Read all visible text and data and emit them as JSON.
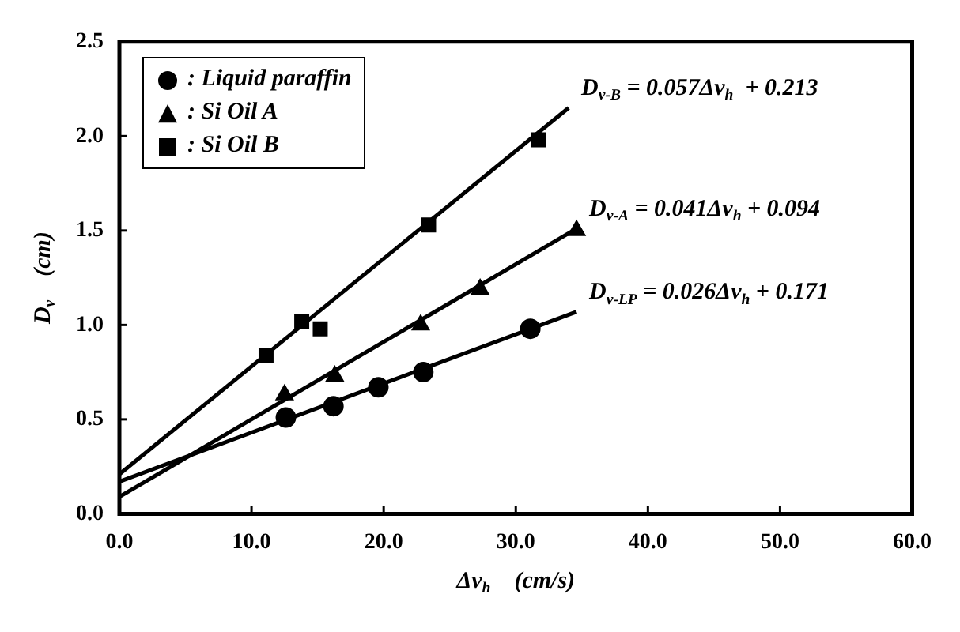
{
  "chart_data": {
    "type": "scatter",
    "xlabel": "Δv$_{h}$    (cm/s)",
    "ylabel": "D$_{v}$    (cm)",
    "xlim": [
      0,
      60
    ],
    "ylim": [
      0,
      2.5
    ],
    "xticks": [
      {
        "value": 0,
        "label": "0.0"
      },
      {
        "value": 10,
        "label": "10.0"
      },
      {
        "value": 20,
        "label": "20.0"
      },
      {
        "value": 30,
        "label": "30.0"
      },
      {
        "value": 40,
        "label": "40.0"
      },
      {
        "value": 50,
        "label": "50.0"
      },
      {
        "value": 60,
        "label": "60.0"
      }
    ],
    "yticks": [
      {
        "value": 0,
        "label": "0.0"
      },
      {
        "value": 0.5,
        "label": "0.5"
      },
      {
        "value": 1,
        "label": "1.0"
      },
      {
        "value": 1.5,
        "label": "1.5"
      },
      {
        "value": 2,
        "label": "2.0"
      },
      {
        "value": 2.5,
        "label": "2.5"
      }
    ],
    "grid": false,
    "legend": "top left",
    "series": [
      {
        "name": ": Liquid paraffin",
        "color": "#000000",
        "marker": "circle",
        "x": [
          12.6,
          16.2,
          19.6,
          23.0,
          31.1
        ],
        "values": [
          0.51,
          0.57,
          0.67,
          0.75,
          0.98
        ]
      },
      {
        "name": ": Si Oil A",
        "color": "#000000",
        "marker": "triangle",
        "x": [
          12.5,
          16.3,
          22.8,
          27.3,
          34.6
        ],
        "values": [
          0.63,
          0.73,
          1.0,
          1.19,
          1.5
        ]
      },
      {
        "name": ": Si Oil B",
        "color": "#000000",
        "marker": "square",
        "x": [
          11.1,
          13.8,
          15.2,
          23.4,
          31.7
        ],
        "values": [
          0.84,
          1.02,
          0.98,
          1.53,
          1.98
        ]
      },
      {
        "type": "line",
        "name": "D$_{v-LP}$ = 0.026Δv$_{h}$ + 0.171",
        "color": "#000000",
        "marker": "none",
        "x": [
          0,
          34.6
        ],
        "values": [
          0.17,
          1.07
        ]
      },
      {
        "type": "line",
        "name": "D$_{v-A}$ = 0.041Δv$_{h}$ + 0.094",
        "color": "#000000",
        "marker": "none",
        "x": [
          0,
          34.6
        ],
        "values": [
          0.09,
          1.51
        ]
      },
      {
        "type": "line",
        "name": "D$_{v-B}$ = 0.057Δv$_{h}$  + 0.213",
        "color": "#000000",
        "marker": "none",
        "x": [
          0,
          34.0
        ],
        "values": [
          0.21,
          2.15
        ]
      }
    ]
  }
}
